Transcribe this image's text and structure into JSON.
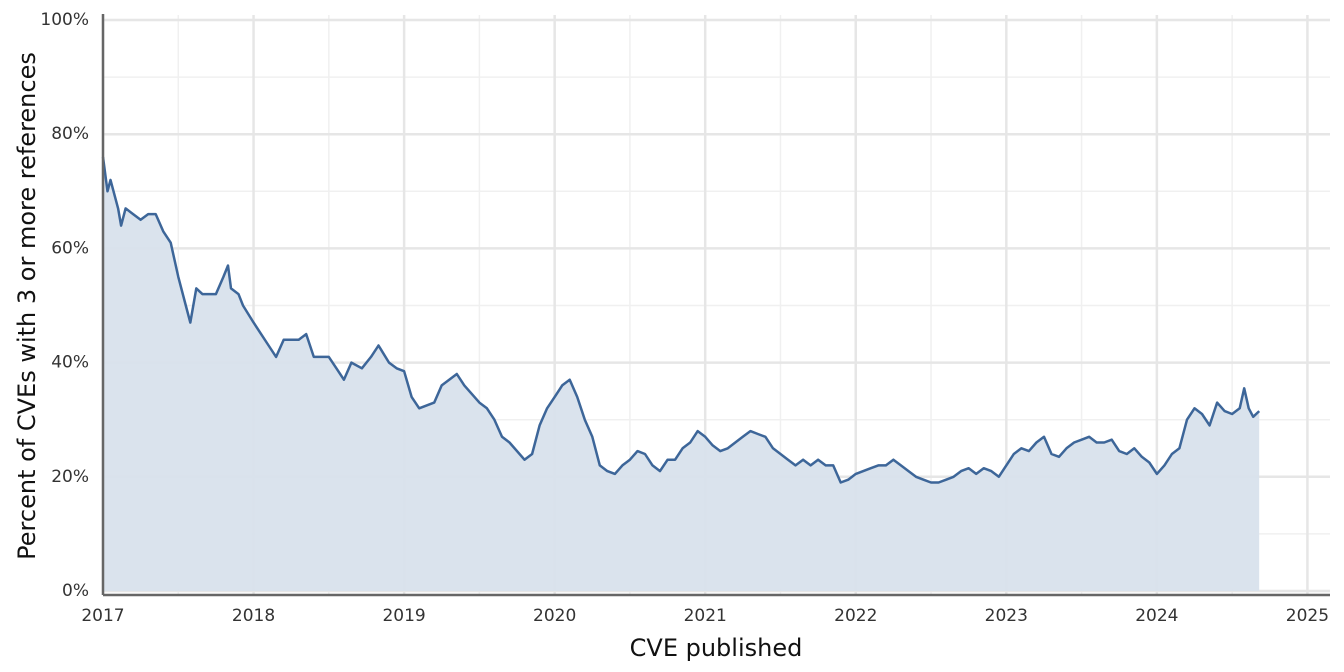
{
  "chart_data": {
    "type": "area",
    "x_label": "CVE published",
    "y_label": "Percent of CVEs with 3 or more references",
    "color": "#3d6699",
    "fill_color": "#d8e2ec",
    "xlim": [
      2017,
      2025.15
    ],
    "ylim": [
      0,
      100
    ],
    "xticks": [
      2017,
      2018,
      2019,
      2020,
      2021,
      2022,
      2023,
      2024,
      2025
    ],
    "yticks": [
      {
        "value": 0,
        "label": "0%"
      },
      {
        "value": 20,
        "label": "20%"
      },
      {
        "value": 40,
        "label": "40%"
      },
      {
        "value": 60,
        "label": "60%"
      },
      {
        "value": 80,
        "label": "80%"
      },
      {
        "value": 100,
        "label": "100%"
      }
    ],
    "minor_xticks": [
      2017.5,
      2018.5,
      2019.5,
      2020.5,
      2021.5,
      2022.5,
      2023.5,
      2024.5
    ],
    "minor_yticks": [
      10,
      30,
      50,
      70,
      90
    ],
    "grid": true,
    "x": [
      2017.0,
      2017.03,
      2017.05,
      2017.1,
      2017.12,
      2017.15,
      2017.2,
      2017.25,
      2017.3,
      2017.35,
      2017.4,
      2017.45,
      2017.5,
      2017.55,
      2017.58,
      2017.62,
      2017.66,
      2017.7,
      2017.75,
      2017.8,
      2017.83,
      2017.85,
      2017.9,
      2017.93,
      2018.0,
      2018.05,
      2018.1,
      2018.15,
      2018.2,
      2018.3,
      2018.35,
      2018.4,
      2018.5,
      2018.55,
      2018.6,
      2018.65,
      2018.72,
      2018.78,
      2018.83,
      2018.9,
      2018.95,
      2019.0,
      2019.05,
      2019.1,
      2019.2,
      2019.25,
      2019.35,
      2019.4,
      2019.5,
      2019.55,
      2019.6,
      2019.65,
      2019.7,
      2019.8,
      2019.85,
      2019.9,
      2019.95,
      2020.0,
      2020.05,
      2020.1,
      2020.15,
      2020.2,
      2020.25,
      2020.3,
      2020.35,
      2020.4,
      2020.45,
      2020.5,
      2020.55,
      2020.6,
      2020.65,
      2020.7,
      2020.75,
      2020.8,
      2020.85,
      2020.9,
      2020.95,
      2021.0,
      2021.05,
      2021.1,
      2021.15,
      2021.2,
      2021.25,
      2021.3,
      2021.35,
      2021.4,
      2021.45,
      2021.5,
      2021.55,
      2021.6,
      2021.65,
      2021.7,
      2021.75,
      2021.8,
      2021.85,
      2021.9,
      2021.95,
      2022.0,
      2022.05,
      2022.1,
      2022.15,
      2022.2,
      2022.25,
      2022.3,
      2022.35,
      2022.4,
      2022.45,
      2022.5,
      2022.55,
      2022.6,
      2022.65,
      2022.7,
      2022.75,
      2022.8,
      2022.85,
      2022.9,
      2022.95,
      2023.0,
      2023.05,
      2023.1,
      2023.15,
      2023.2,
      2023.25,
      2023.3,
      2023.35,
      2023.4,
      2023.45,
      2023.5,
      2023.55,
      2023.6,
      2023.65,
      2023.7,
      2023.75,
      2023.8,
      2023.85,
      2023.9,
      2023.95,
      2024.0,
      2024.05,
      2024.1,
      2024.15,
      2024.2,
      2024.25,
      2024.3,
      2024.35,
      2024.4,
      2024.45,
      2024.5,
      2024.55,
      2024.58,
      2024.61,
      2024.64,
      2024.68
    ],
    "values": [
      76,
      70,
      72,
      67,
      64,
      67,
      66,
      65,
      66,
      66,
      63,
      61,
      55,
      50,
      47,
      53,
      52,
      52,
      52,
      55,
      57,
      53,
      52,
      50,
      47,
      45,
      43,
      41,
      44,
      44,
      45,
      41,
      41,
      39,
      37,
      40,
      39,
      41,
      43,
      40,
      39,
      38.5,
      34,
      32,
      33,
      36,
      38,
      36,
      33,
      32,
      30,
      27,
      26,
      23,
      24,
      29,
      32,
      34,
      36,
      37,
      34,
      30,
      27,
      22,
      21,
      20.5,
      22,
      23,
      24.5,
      24,
      22,
      21,
      23,
      23,
      25,
      26,
      28,
      27,
      25.5,
      24.5,
      25,
      26,
      27,
      28,
      27.5,
      27,
      25,
      24,
      23,
      22,
      23,
      22,
      23,
      22,
      22,
      19,
      19.5,
      20.5,
      21,
      21.5,
      22,
      22,
      23,
      22,
      21,
      20,
      19.5,
      19,
      19,
      19.5,
      20,
      21,
      21.5,
      20.5,
      21.5,
      21,
      20,
      22,
      24,
      25,
      24.5,
      26,
      27,
      24,
      23.5,
      25,
      26,
      26.5,
      27,
      26,
      26,
      26.5,
      24.5,
      24,
      25,
      23.5,
      22.5,
      20.5,
      22,
      24,
      25,
      30,
      32,
      31,
      29,
      33,
      31.5,
      31,
      32,
      35.5,
      32,
      30.5,
      31.5
    ]
  }
}
